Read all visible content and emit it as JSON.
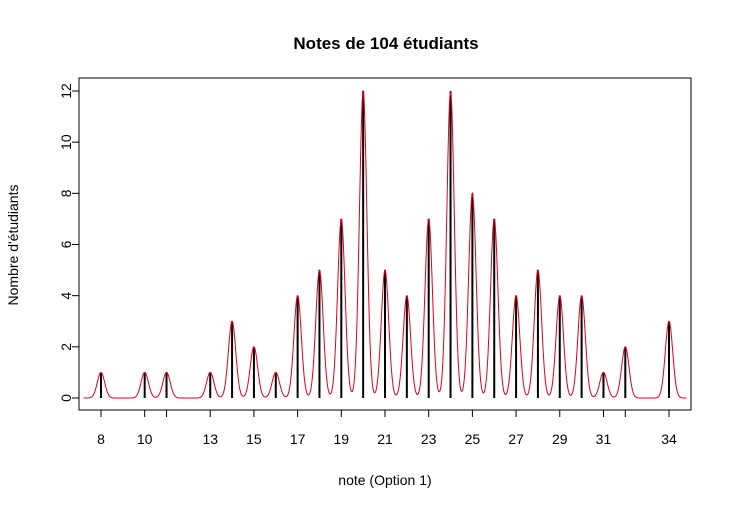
{
  "chart_data": {
    "type": "bar",
    "title": "Notes de 104 étudiants",
    "xlabel": "note (Option 1)",
    "ylabel": "Nombre d'étudiants",
    "x": [
      8,
      10,
      11,
      13,
      14,
      15,
      16,
      17,
      18,
      19,
      20,
      21,
      22,
      23,
      24,
      25,
      26,
      27,
      28,
      29,
      30,
      31,
      32,
      34
    ],
    "values": [
      1,
      1,
      1,
      1,
      3,
      2,
      1,
      4,
      5,
      7,
      12,
      5,
      4,
      7,
      12,
      8,
      7,
      4,
      5,
      4,
      4,
      1,
      2,
      3
    ],
    "x_tick_labels": [
      8,
      10,
      13,
      15,
      17,
      19,
      21,
      23,
      25,
      27,
      29,
      31,
      34
    ],
    "x_minor_ticks": [
      11,
      32
    ],
    "y_ticks": [
      0,
      2,
      4,
      6,
      8,
      10,
      12
    ],
    "xlim": [
      7.2,
      34.8
    ],
    "ylim": [
      0,
      12
    ],
    "grid": false,
    "bar_color": "#000000",
    "curve_color": "#e0001a"
  }
}
